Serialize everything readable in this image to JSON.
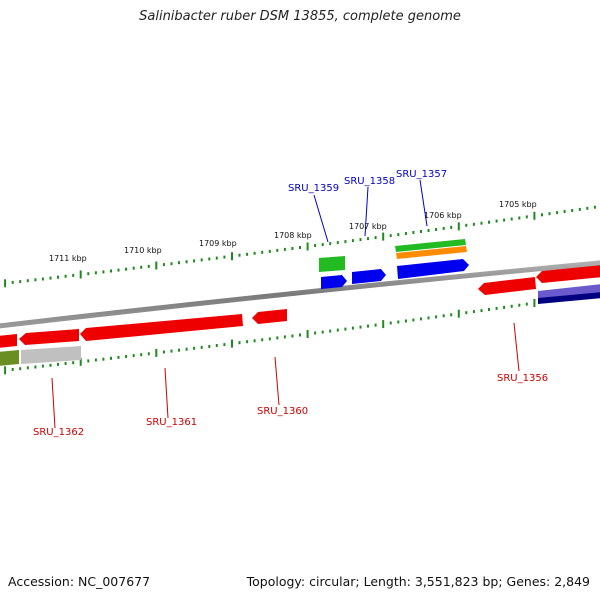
{
  "title": "Salinibacter ruber DSM 13855, complete genome",
  "footer": {
    "accession": "Accession: NC_007677",
    "summary": "Topology: circular; Length: 3,551,823 bp; Genes: 2,849"
  },
  "colors": {
    "tick": "#1e8a1e",
    "backbone": "#808080",
    "gene_red": "#ee0000",
    "gene_blue": "#0000ee",
    "gene_green": "#22bb22",
    "gene_orange": "#ff8c00",
    "gene_navy": "#000080",
    "gene_slate": "#6a5acd",
    "gene_olive": "#6b8e23",
    "gene_gray": "#c0c0c0",
    "label_red": "#cc0000",
    "label_blue": "#0000cc"
  },
  "kbp_ticks": [
    "1711 kbp",
    "1710 kbp",
    "1709 kbp",
    "1708 kbp",
    "1707 kbp",
    "1706 kbp",
    "1705 kbp"
  ],
  "gene_labels_top": [
    "SRU_1359",
    "SRU_1358",
    "SRU_1357"
  ],
  "gene_labels_bottom": [
    "SRU_1362",
    "SRU_1361",
    "SRU_1360",
    "SRU_1356"
  ]
}
